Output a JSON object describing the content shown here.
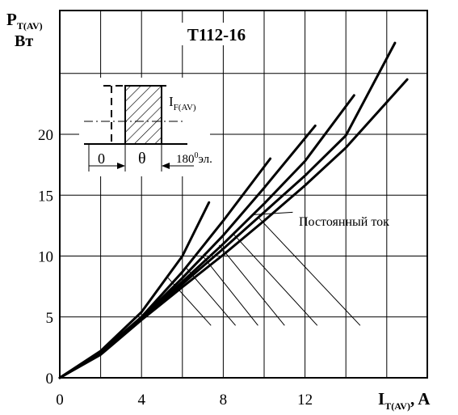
{
  "chart_data": {
    "type": "line",
    "title": "T112-16",
    "ylabel_main": "P",
    "ylabel_sub": "T(AV)",
    "ylabel_unit": "Вт",
    "xlabel_main": "I",
    "xlabel_sub": "T(AV)",
    "xlabel_unit": ", A",
    "xlim": [
      0,
      17
    ],
    "ylim": [
      0,
      27
    ],
    "xticks": [
      0,
      4,
      8,
      12
    ],
    "yticks": [
      0,
      5,
      10,
      15,
      20
    ],
    "grid": true,
    "annotation_dc": "Постоянный ток",
    "series": [
      {
        "x": [
          0,
          2,
          4,
          6,
          7.3
        ],
        "y": [
          0,
          2.2,
          5.4,
          10.0,
          14.4
        ]
      },
      {
        "x": [
          0,
          2,
          4,
          6,
          8,
          10.3
        ],
        "y": [
          0,
          2.1,
          5.0,
          8.7,
          12.9,
          18.0
        ]
      },
      {
        "x": [
          0,
          2,
          4,
          6,
          8,
          10,
          12.5
        ],
        "y": [
          0,
          2.05,
          4.9,
          8.2,
          11.7,
          15.6,
          20.7
        ]
      },
      {
        "x": [
          0,
          2,
          4,
          6,
          8,
          10,
          12,
          14.4
        ],
        "y": [
          0,
          2.0,
          4.85,
          7.9,
          11.0,
          14.3,
          17.8,
          23.2
        ]
      },
      {
        "x": [
          0,
          2,
          4,
          6,
          8,
          10,
          12,
          14,
          16.4
        ],
        "y": [
          0,
          1.95,
          4.8,
          7.7,
          10.6,
          13.6,
          16.6,
          19.9,
          27.5
        ]
      },
      {
        "x": [
          0,
          2,
          4,
          6,
          8,
          10,
          12,
          14,
          17
        ],
        "y": [
          0,
          1.9,
          4.75,
          7.45,
          10.1,
          12.9,
          15.8,
          18.9,
          24.5
        ]
      }
    ],
    "inset": {
      "current_label_main": "I",
      "current_label_sub": "F(AV)",
      "zero_label": "0",
      "theta_label": "θ",
      "period_label": "180",
      "period_sup": "0",
      "period_unit": "эл."
    }
  }
}
